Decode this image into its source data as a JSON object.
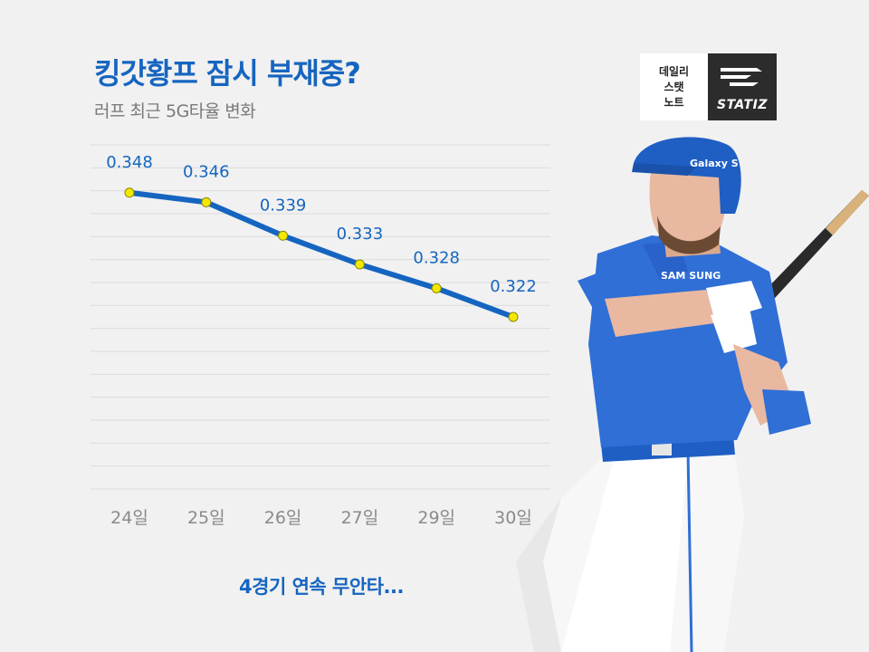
{
  "title": "킹갓황프 잠시 부재중?",
  "subtitle": "러프 최근 5G타율 변화",
  "brand": {
    "label_lines": [
      "데일리",
      "스탯",
      "노트"
    ],
    "name": "STATIZ"
  },
  "footer": "4경기 연속 무안타...",
  "player_image": {
    "jersey_text": "SAM SUNG",
    "helmet_text": "Galaxy S"
  },
  "colors": {
    "accent": "#1565c0",
    "line": "#1565c0",
    "marker": "#f5e800",
    "grid": "#dcdcdc"
  },
  "chart_data": {
    "type": "line",
    "categories": [
      "24일",
      "25일",
      "26일",
      "27일",
      "29일",
      "30일"
    ],
    "values": [
      0.348,
      0.346,
      0.339,
      0.333,
      0.328,
      0.322
    ],
    "data_labels": [
      "0.348",
      "0.346",
      "0.339",
      "0.333",
      "0.328",
      "0.322"
    ],
    "ylim": [
      0.286,
      0.358
    ],
    "grid": true,
    "legend": "none"
  }
}
